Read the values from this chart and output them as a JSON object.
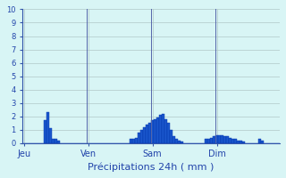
{
  "title": "Précipitations 24h ( mm )",
  "background_color": "#d8f5f5",
  "bar_color": "#1a56cc",
  "bar_edge_color": "#0033aa",
  "grid_color": "#b0c8c8",
  "axis_line_color": "#3355aa",
  "text_color": "#2244aa",
  "ylim": [
    0,
    10
  ],
  "yticks": [
    0,
    1,
    2,
    3,
    4,
    5,
    6,
    7,
    8,
    9,
    10
  ],
  "day_labels": [
    "Jeu",
    "Ven",
    "Sam",
    "Dim"
  ],
  "day_positions": [
    0,
    24,
    48,
    72
  ],
  "n_bars": 96,
  "values": [
    0.0,
    0.0,
    0.0,
    0.0,
    0.0,
    0.0,
    0.0,
    0.0,
    1.7,
    2.3,
    1.1,
    0.3,
    0.3,
    0.2,
    0.0,
    0.0,
    0.0,
    0.0,
    0.0,
    0.0,
    0.0,
    0.0,
    0.0,
    0.0,
    0.0,
    0.0,
    0.0,
    0.0,
    0.0,
    0.0,
    0.0,
    0.0,
    0.0,
    0.0,
    0.0,
    0.0,
    0.0,
    0.0,
    0.0,
    0.0,
    0.3,
    0.3,
    0.4,
    0.8,
    1.0,
    1.2,
    1.4,
    1.5,
    1.7,
    1.8,
    1.9,
    2.1,
    2.2,
    1.8,
    1.5,
    1.0,
    0.5,
    0.3,
    0.2,
    0.1,
    0.0,
    0.0,
    0.0,
    0.0,
    0.0,
    0.0,
    0.0,
    0.0,
    0.3,
    0.3,
    0.4,
    0.5,
    0.6,
    0.6,
    0.6,
    0.5,
    0.5,
    0.4,
    0.3,
    0.3,
    0.2,
    0.2,
    0.1,
    0.0,
    0.0,
    0.0,
    0.0,
    0.0,
    0.3,
    0.2,
    0.0,
    0.0,
    0.0,
    0.0,
    0.0,
    0.0
  ]
}
